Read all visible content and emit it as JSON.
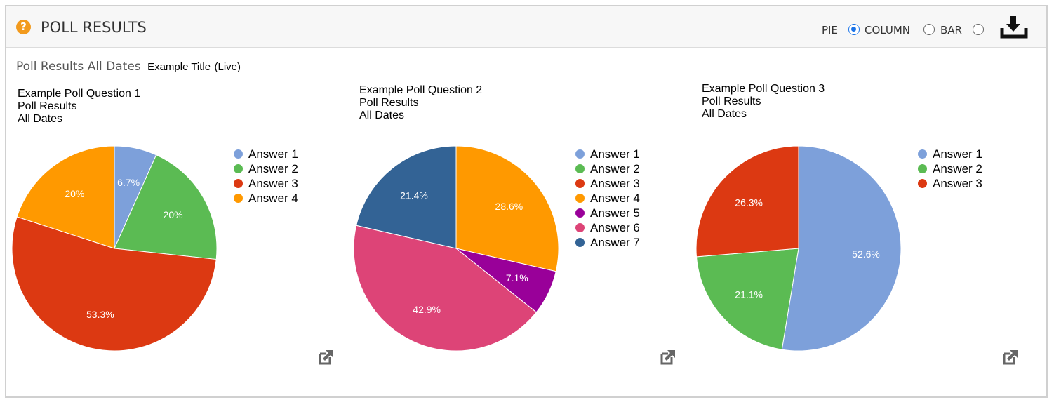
{
  "header": {
    "help_icon": "question-circle-icon",
    "title": "POLL RESULTS",
    "chart_type": {
      "options": [
        {
          "label": "PIE",
          "selected": true
        },
        {
          "label": "COLUMN",
          "selected": false
        },
        {
          "label": "BAR",
          "selected": false
        }
      ]
    },
    "download_icon": "download-icon"
  },
  "subtitle": {
    "label": "Poll Results All Dates",
    "event_title": "Example Title",
    "status": "(Live)"
  },
  "popout_icon": "external-link-icon",
  "colors": {
    "Answer 1": "#7da0da",
    "Answer 2": "#5bbb53",
    "Answer 3": "#dc3912",
    "Answer 4": "#ff9900",
    "Answer 5": "#990099",
    "Answer 6": "#dd4477",
    "Answer 7": "#336395"
  },
  "chart_data": [
    {
      "type": "pie",
      "title": [
        "Example Poll Question 1",
        "Poll Results",
        "All Dates"
      ],
      "slices": [
        {
          "label": "Answer 1",
          "value": 6.7,
          "display": "6.7%"
        },
        {
          "label": "Answer 2",
          "value": 20,
          "display": "20%"
        },
        {
          "label": "Answer 3",
          "value": 53.3,
          "display": "53.3%"
        },
        {
          "label": "Answer 4",
          "value": 20,
          "display": "20%"
        }
      ],
      "legend": "right"
    },
    {
      "type": "pie",
      "title": [
        "Example Poll Question 2",
        "Poll Results",
        "All Dates"
      ],
      "slices": [
        {
          "label": "Answer 1",
          "value": 0,
          "display": ""
        },
        {
          "label": "Answer 2",
          "value": 0,
          "display": ""
        },
        {
          "label": "Answer 3",
          "value": 0,
          "display": ""
        },
        {
          "label": "Answer 4",
          "value": 28.6,
          "display": "28.6%"
        },
        {
          "label": "Answer 5",
          "value": 7.1,
          "display": "7.1%"
        },
        {
          "label": "Answer 6",
          "value": 42.9,
          "display": "42.9%"
        },
        {
          "label": "Answer 7",
          "value": 21.4,
          "display": "21.4%"
        }
      ],
      "legend": "right"
    },
    {
      "type": "pie",
      "title": [
        "Example Poll Question 3",
        "Poll Results",
        "All Dates"
      ],
      "slices": [
        {
          "label": "Answer 1",
          "value": 52.6,
          "display": "52.6%"
        },
        {
          "label": "Answer 2",
          "value": 21.1,
          "display": "21.1%"
        },
        {
          "label": "Answer 3",
          "value": 26.3,
          "display": "26.3%"
        }
      ],
      "legend": "right"
    }
  ]
}
